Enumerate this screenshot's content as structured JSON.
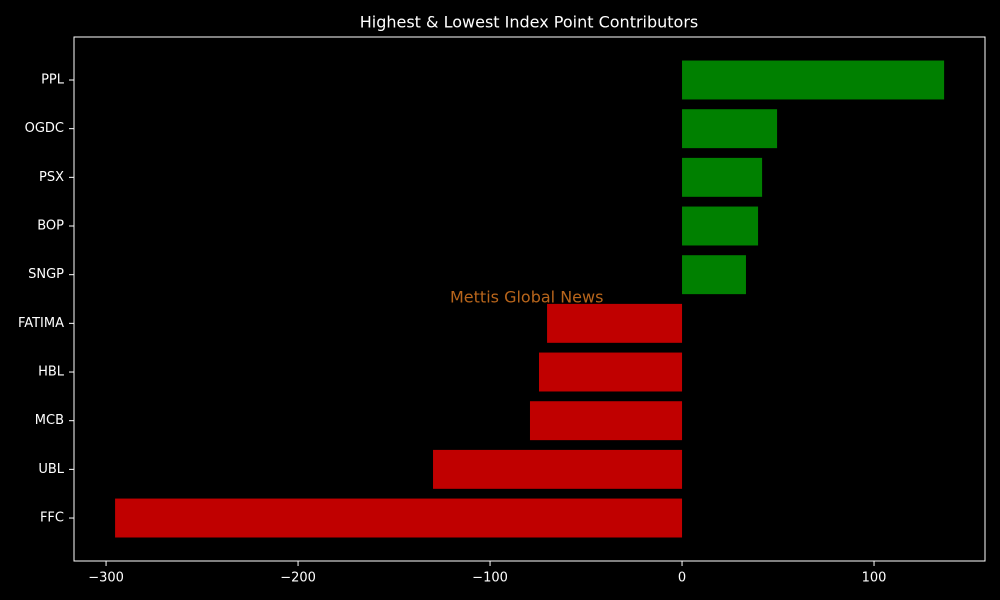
{
  "chart_data": {
    "type": "barh",
    "title": "Highest & Lowest Index Point Contributors",
    "annotation": "Mettis Global News",
    "categories": [
      "PPL",
      "OGDC",
      "PSX",
      "BOP",
      "SNGP",
      "FATIMA",
      "HBL",
      "MCB",
      "UBL",
      "FFC"
    ],
    "values": [
      136.5,
      49.5,
      41.7,
      39.6,
      33.3,
      -70.3,
      -74.5,
      -79.2,
      -129.7,
      -295.3
    ],
    "colors": [
      "#008000",
      "#008000",
      "#008000",
      "#008000",
      "#008000",
      "#c00000",
      "#c00000",
      "#c00000",
      "#c00000",
      "#c00000"
    ],
    "xlim": [
      -316.7,
      157.8
    ],
    "xticks": [
      {
        "value": -300,
        "label": "−300"
      },
      {
        "value": -200,
        "label": "−200"
      },
      {
        "value": -100,
        "label": "−100"
      },
      0,
      100
    ],
    "grid": false
  }
}
